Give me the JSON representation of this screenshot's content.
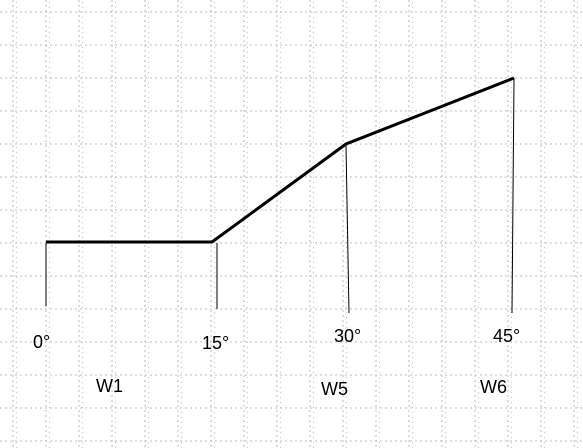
{
  "grid": {
    "color": "#c8c8c8",
    "style": "dotted"
  },
  "profile": {
    "color": "#000000"
  },
  "angle_labels": [
    "0°",
    "15°",
    "30°",
    "45°"
  ],
  "segment_labels": [
    "W1",
    "W5",
    "W6"
  ]
}
